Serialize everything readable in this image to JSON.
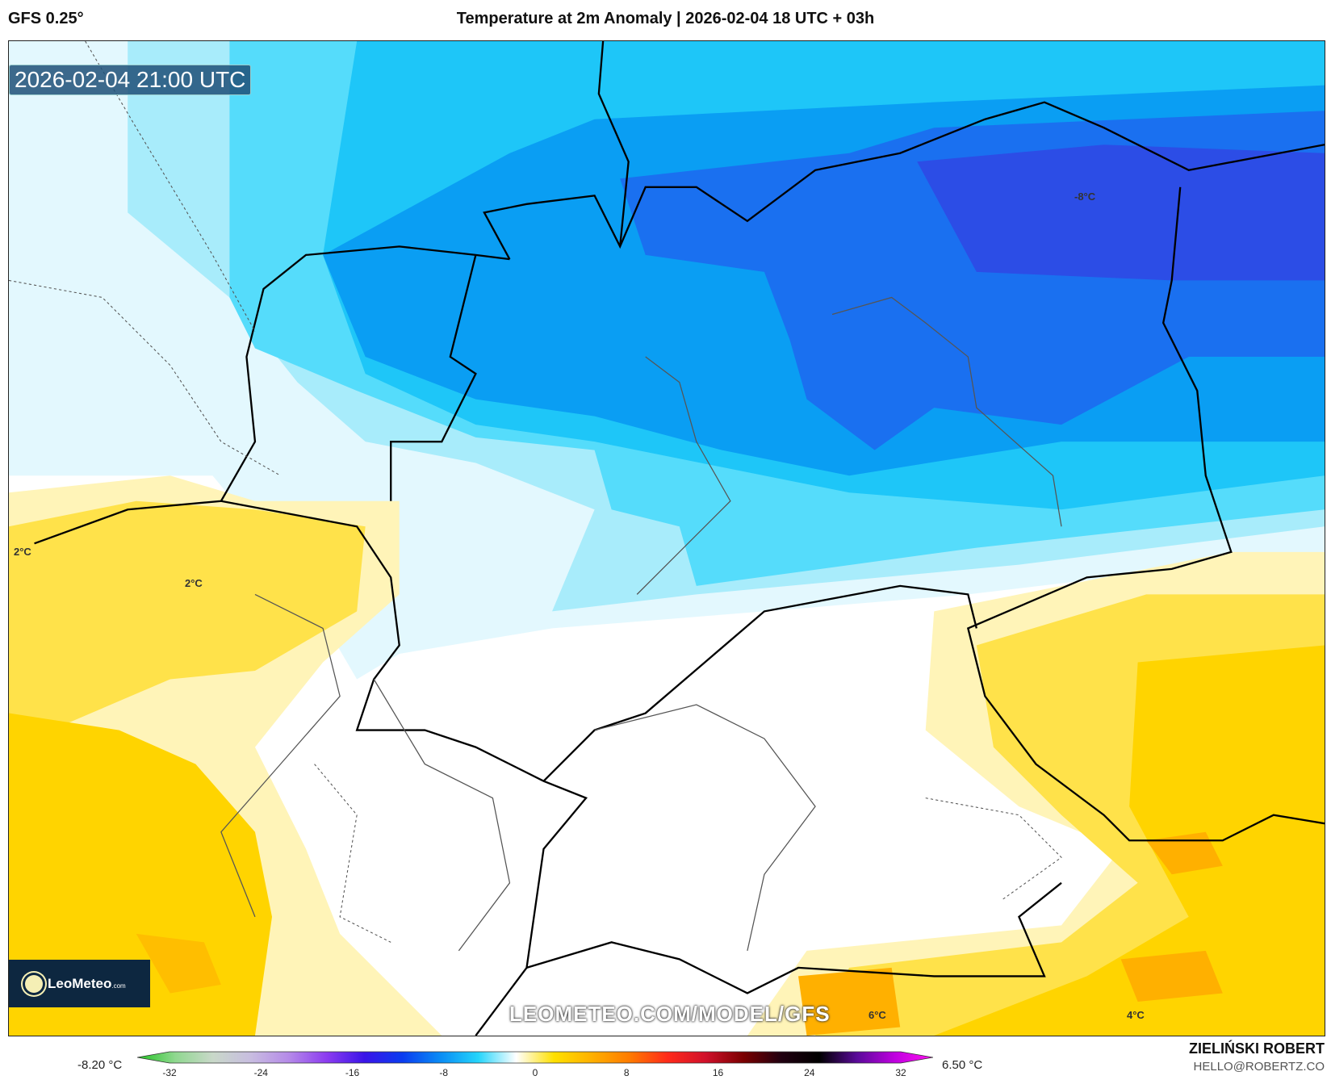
{
  "header": {
    "model": "GFS 0.25°",
    "title": "Temperature at 2m Anomaly | 2026-02-04 18 UTC + 03h"
  },
  "map": {
    "valid_time": "2026-02-04 21:00 UTC",
    "labels": [
      "-8°C",
      "2°C",
      "2°C",
      "6°C",
      "4°C"
    ],
    "watermark": "LEOMETEO.COM/MODEL/GFS",
    "logo": {
      "name": "LeoMeteo",
      "suffix": ".com"
    }
  },
  "colorbar": {
    "min_label": "-8.20 °C",
    "max_label": "6.50 °C",
    "ticks": [
      "-32",
      "-24",
      "-16",
      "-8",
      "0",
      "8",
      "16",
      "24",
      "32"
    ],
    "colors": [
      "#22c422",
      "#8fd88f",
      "#c9d8c9",
      "#c8bde0",
      "#b58ae8",
      "#8c3cf0",
      "#3a14e8",
      "#0a3cf0",
      "#0a8cf5",
      "#25d5fb",
      "#ffffff",
      "#ffe000",
      "#ffb000",
      "#ff7a00",
      "#ff2a1a",
      "#d0102a",
      "#7a0000",
      "#200010",
      "#000000",
      "#5a0a9a",
      "#c000e0",
      "#ff10f0"
    ]
  },
  "credits": {
    "author": "ZIELIŃSKI ROBERT",
    "email": "HELLO@ROBERTZ.CO"
  }
}
